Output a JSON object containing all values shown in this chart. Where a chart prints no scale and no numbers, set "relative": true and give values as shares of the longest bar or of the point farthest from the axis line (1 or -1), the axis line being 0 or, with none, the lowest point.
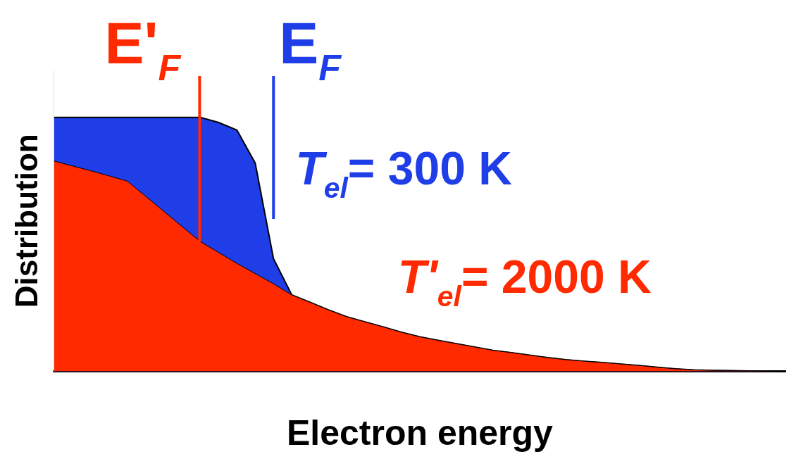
{
  "chart_data": {
    "type": "area",
    "relative": true,
    "xlabel": "Electron energy",
    "ylabel": "Distribution",
    "grid": false,
    "legend": false,
    "categories": [
      null,
      null,
      null,
      null,
      null,
      null,
      null,
      null,
      null,
      null,
      null,
      null,
      null,
      null,
      null,
      null,
      null,
      null,
      null,
      null,
      null,
      null,
      null,
      null,
      null,
      null,
      null,
      null,
      null,
      null,
      null,
      null,
      null,
      null,
      null,
      null,
      null,
      null,
      null,
      null,
      null
    ],
    "series": [
      {
        "name": "T$_{el}$= 300 K",
        "color": "#1f3ee8",
        "values": [
          1,
          1,
          1,
          1,
          1,
          1,
          1,
          1,
          1,
          0.98,
          0.95,
          0.82,
          0.444,
          0.301,
          0.272,
          0.242,
          0.215,
          0.195,
          0.175,
          0.154,
          0.136,
          0.122,
          0.109,
          0.096,
          0.083,
          0.074,
          0.064,
          0.054,
          0.046,
          0.04,
          0.035,
          0.029,
          0.023,
          0.016,
          0.01,
          0.006,
          0.004,
          0.003,
          0.002,
          0.001,
          0
        ]
      },
      {
        "name": "T'$_{el}$= 2000 K",
        "color": "#ff2a00",
        "values": [
          0.828,
          0.809,
          0.79,
          0.77,
          0.749,
          0.69,
          0.63,
          0.57,
          0.511,
          0.468,
          0.425,
          0.385,
          0.345,
          0.301,
          0.272,
          0.242,
          0.215,
          0.195,
          0.175,
          0.154,
          0.136,
          0.122,
          0.109,
          0.096,
          0.083,
          0.074,
          0.064,
          0.054,
          0.046,
          0.04,
          0.035,
          0.029,
          0.023,
          0.016,
          0.01,
          0.006,
          0.004,
          0.003,
          0.002,
          0.001,
          0
        ]
      }
    ],
    "annotations": [
      "E'$_{F}$",
      "E$_{F}$"
    ]
  }
}
